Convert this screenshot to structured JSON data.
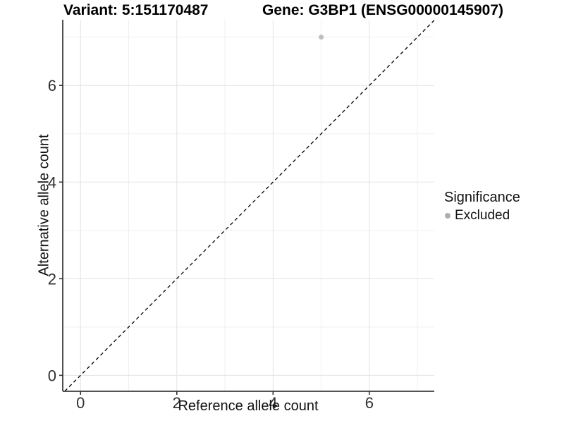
{
  "chart_data": {
    "type": "scatter",
    "title_left": "Variant: 5:151170487",
    "title_right": "Gene: G3BP1 (ENSG00000145907)",
    "xlabel": "Reference allele count",
    "ylabel": "Alternative allele count",
    "xlim": [
      -0.37,
      7.35
    ],
    "ylim": [
      -0.33,
      7.36
    ],
    "x_major_ticks": [
      0,
      2,
      4,
      6
    ],
    "y_major_ticks": [
      0,
      2,
      4,
      6
    ],
    "x_minor_gridlines": [
      1,
      3,
      5,
      7
    ],
    "y_minor_gridlines": [
      1,
      3,
      5,
      7
    ],
    "grid": true,
    "legend_position": "right",
    "reference_line": {
      "slope": 1,
      "intercept": 0,
      "style": "dashed",
      "color": "#000000"
    },
    "series": [
      {
        "name": "Excluded",
        "color": "#bebebe",
        "points": [
          {
            "x": 5,
            "y": 7
          }
        ]
      }
    ],
    "legend": {
      "title": "Significance",
      "items": [
        {
          "label": "Excluded",
          "color": "#aeaeae"
        }
      ]
    },
    "style": {
      "background": "#ffffff",
      "grid_major_color": "#e3e3e3",
      "grid_minor_color": "#f0f0f0",
      "axis_line_color": "#3c3c3c",
      "tick_color": "#333333",
      "point_radius": 3.5
    }
  }
}
